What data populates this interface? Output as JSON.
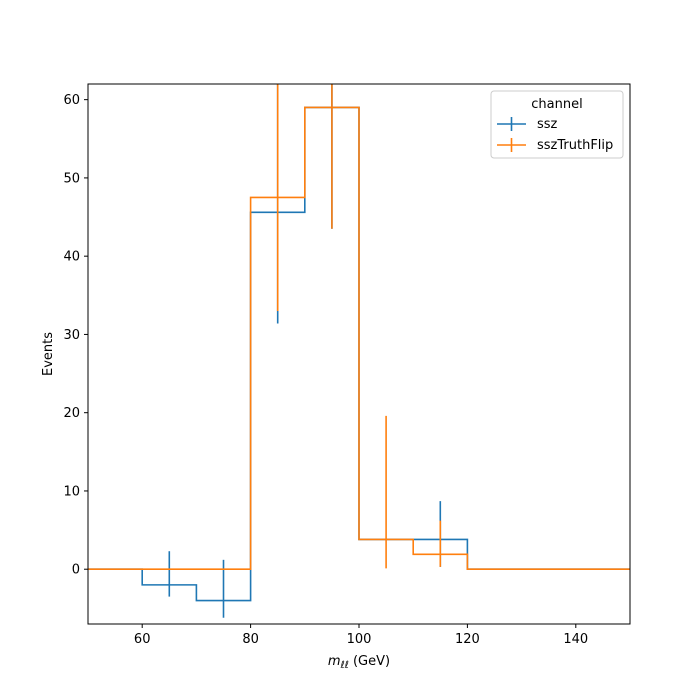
{
  "chart_data": {
    "type": "histogram-step",
    "xlabel_var": "m",
    "xlabel_sub": "ℓℓ",
    "xlabel_unit": " (GeV)",
    "ylabel": "Events",
    "xlim": [
      50,
      150
    ],
    "ylim": [
      -7,
      62
    ],
    "xticks": [
      60,
      80,
      100,
      120,
      140
    ],
    "yticks": [
      0,
      10,
      20,
      30,
      40,
      50,
      60
    ],
    "grid": false,
    "legend": {
      "title": "channel",
      "placement": "upper right"
    },
    "bin_edges": [
      50,
      60,
      70,
      80,
      90,
      100,
      110,
      120,
      130,
      140,
      150
    ],
    "series": [
      {
        "name": "ssz",
        "color": "#1f77b4",
        "values": [
          0,
          -2,
          -4,
          45.6,
          59,
          3.8,
          3.8,
          0,
          0,
          0
        ],
        "errorbars": [
          {
            "x": 65,
            "y": -2,
            "lo": -3.5,
            "hi": 2.3
          },
          {
            "x": 75,
            "y": -4,
            "lo": -6.2,
            "hi": 1.2
          },
          {
            "x": 85,
            "y": 45.6,
            "lo": 31.4,
            "hi": 62
          },
          {
            "x": 95,
            "y": 59,
            "lo": 43.5,
            "hi": 62
          },
          {
            "x": 115,
            "y": 3.8,
            "lo": 0.3,
            "hi": 8.7
          }
        ]
      },
      {
        "name": "sszTruthFlip",
        "color": "#ff7f0e",
        "values": [
          0,
          0,
          0,
          47.5,
          59,
          3.8,
          1.9,
          0,
          0,
          0
        ],
        "errorbars": [
          {
            "x": 85,
            "y": 47.5,
            "lo": 33,
            "hi": 62
          },
          {
            "x": 95,
            "y": 59,
            "lo": 43.5,
            "hi": 62
          },
          {
            "x": 105,
            "y": 3.8,
            "lo": 0.1,
            "hi": 19.6
          },
          {
            "x": 115,
            "y": 1.9,
            "lo": 0.3,
            "hi": 6.2
          }
        ]
      }
    ]
  }
}
